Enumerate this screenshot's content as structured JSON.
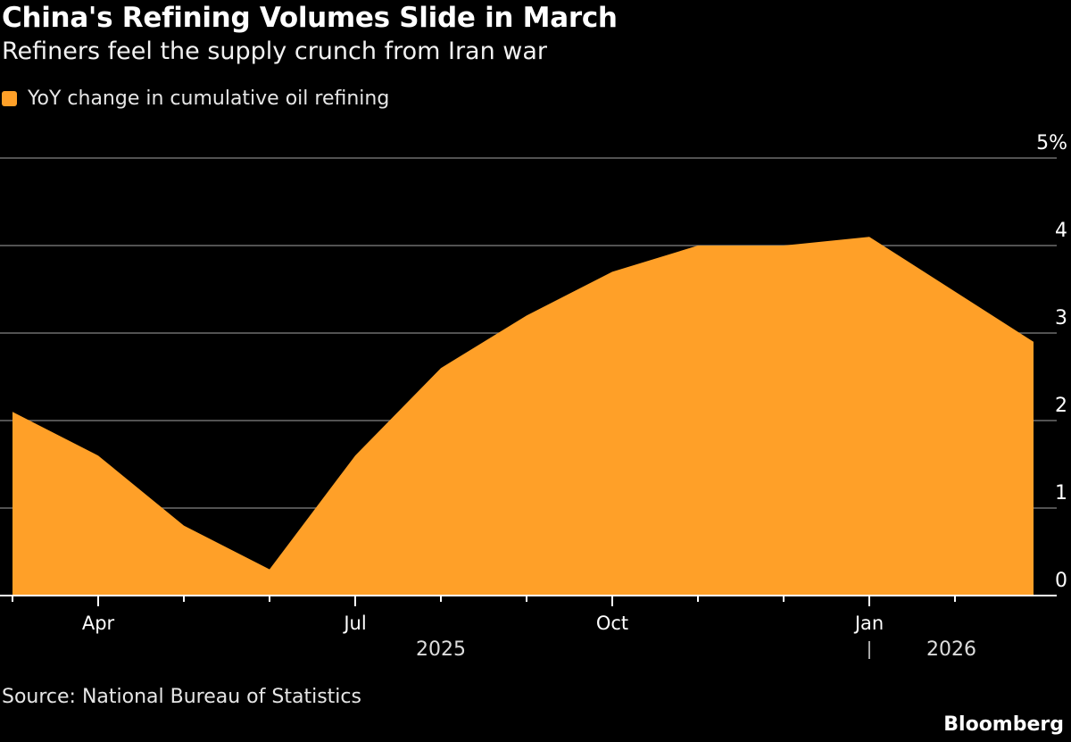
{
  "chart_data": {
    "type": "area",
    "title": "China's Refining Volumes Slide in March",
    "subtitle": "Refiners feel the supply crunch from Iran war",
    "legend": [
      {
        "name": "YoY change in cumulative oil refining",
        "color": "#ffa028"
      }
    ],
    "legend_placement": "top-left",
    "x": [
      "2025-03",
      "2025-04",
      "2025-05",
      "2025-06",
      "2025-07",
      "2025-08",
      "2025-09",
      "2025-10",
      "2025-11",
      "2025-12",
      "2026-01",
      "2026-03"
    ],
    "series": [
      {
        "name": "YoY change in cumulative oil refining",
        "values": [
          2.1,
          1.6,
          0.8,
          0.3,
          1.6,
          2.6,
          3.2,
          3.7,
          4.0,
          4.0,
          4.1,
          2.9
        ]
      }
    ],
    "ylim": [
      0,
      5
    ],
    "yticks": [
      "0",
      "1",
      "2",
      "3",
      "4",
      "5%"
    ],
    "xtick_labels": [
      {
        "label": "Apr",
        "month": "2025-04"
      },
      {
        "label": "Jul",
        "month": "2025-07"
      },
      {
        "label": "Oct",
        "month": "2025-10"
      },
      {
        "label": "Jan",
        "month": "2026-01"
      }
    ],
    "year_labels": [
      "2025",
      "2026"
    ],
    "grid": true,
    "y_axis_side": "right",
    "source": "Source: National Bureau of Statistics"
  },
  "brand": "Bloomberg",
  "colors": {
    "area": "#ffa028",
    "background": "#000000",
    "grid": "#6e6e6e"
  }
}
